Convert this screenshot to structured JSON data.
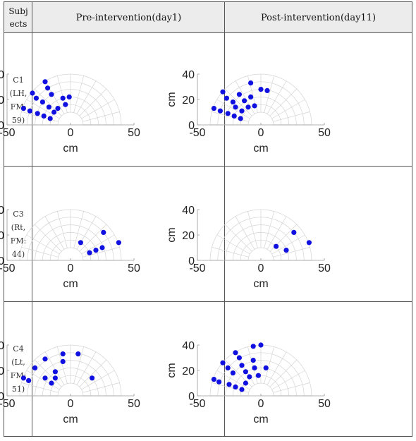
{
  "table": {
    "header": {
      "subject": "Subj ects",
      "pre": "Pre-intervention(day1)",
      "post": "Post-intervention(day11)"
    },
    "rows": [
      {
        "label": [
          "C1",
          "(LH,",
          "FM:",
          "59)"
        ]
      },
      {
        "label": [
          "C3",
          "(Rt,",
          "FM:",
          "44)"
        ]
      },
      {
        "label": [
          "C4",
          "(Lt,",
          "FM:",
          "51)"
        ]
      }
    ]
  },
  "chart_data": [
    {
      "type": "scatter",
      "subject": "C1",
      "panel": "Pre-intervention(day1)",
      "xlabel": "cm",
      "ylabel": "cm",
      "xlim": [
        -50,
        50
      ],
      "ylim": [
        0,
        40
      ],
      "xticks": [
        -50,
        0,
        50
      ],
      "yticks": [
        0,
        20,
        40
      ],
      "marker_color": "#1010e0",
      "points": [
        [
          -37,
          13
        ],
        [
          -32,
          11
        ],
        [
          -30,
          25
        ],
        [
          -27,
          21
        ],
        [
          -26,
          9
        ],
        [
          -22,
          18
        ],
        [
          -21,
          7
        ],
        [
          -20,
          34
        ],
        [
          -18,
          29
        ],
        [
          -17,
          14
        ],
        [
          -16,
          5
        ],
        [
          -15,
          24
        ],
        [
          -13,
          10
        ],
        [
          -10,
          13
        ],
        [
          -6,
          21
        ],
        [
          -4,
          16
        ],
        [
          -1,
          22
        ]
      ]
    },
    {
      "type": "scatter",
      "subject": "C1",
      "panel": "Post-intervention(day11)",
      "xlabel": "cm",
      "ylabel": "cm",
      "xlim": [
        -50,
        50
      ],
      "ylim": [
        0,
        40
      ],
      "xticks": [
        -50,
        0,
        50
      ],
      "yticks": [
        0,
        20,
        40
      ],
      "marker_color": "#1010e0",
      "points": [
        [
          -37,
          13
        ],
        [
          -32,
          11
        ],
        [
          -30,
          26
        ],
        [
          -27,
          21
        ],
        [
          -26,
          9
        ],
        [
          -22,
          18
        ],
        [
          -21,
          7
        ],
        [
          -20,
          14
        ],
        [
          -17,
          24
        ],
        [
          -16,
          5
        ],
        [
          -15,
          11
        ],
        [
          -13,
          19
        ],
        [
          -10,
          14
        ],
        [
          -8,
          33
        ],
        [
          -8,
          22
        ],
        [
          -5,
          15
        ],
        [
          0,
          28
        ],
        [
          5,
          27
        ]
      ]
    },
    {
      "type": "scatter",
      "subject": "C3",
      "panel": "Pre-intervention(day1)",
      "xlabel": "cm",
      "ylabel": "cm",
      "xlim": [
        -50,
        50
      ],
      "ylim": [
        0,
        40
      ],
      "xticks": [
        -50,
        0,
        50
      ],
      "yticks": [
        0,
        20,
        40
      ],
      "marker_color": "#1010e0",
      "points": [
        [
          8,
          14
        ],
        [
          15,
          6
        ],
        [
          20,
          8
        ],
        [
          25,
          10
        ],
        [
          26,
          22
        ],
        [
          38,
          14
        ]
      ]
    },
    {
      "type": "scatter",
      "subject": "C3",
      "panel": "Post-intervention(day11)",
      "xlabel": "cm",
      "ylabel": "cm",
      "xlim": [
        -50,
        50
      ],
      "ylim": [
        0,
        40
      ],
      "xticks": [
        -50,
        0,
        50
      ],
      "yticks": [
        0,
        20,
        40
      ],
      "marker_color": "#1010e0",
      "points": [
        [
          12,
          11
        ],
        [
          20,
          8
        ],
        [
          26,
          22
        ],
        [
          38,
          14
        ]
      ]
    },
    {
      "type": "scatter",
      "subject": "C4",
      "panel": "Pre-intervention(day1)",
      "xlabel": "cm",
      "ylabel": "cm",
      "xlim": [
        -50,
        50
      ],
      "ylim": [
        0,
        40
      ],
      "xticks": [
        -50,
        0,
        50
      ],
      "yticks": [
        0,
        20,
        40
      ],
      "marker_color": "#1010e0",
      "points": [
        [
          -37,
          14
        ],
        [
          -33,
          12
        ],
        [
          -28,
          22
        ],
        [
          -20,
          29
        ],
        [
          -20,
          14
        ],
        [
          -15,
          10
        ],
        [
          -12,
          19
        ],
        [
          -12,
          14
        ],
        [
          -6,
          33
        ],
        [
          -6,
          27
        ],
        [
          6,
          33
        ],
        [
          17,
          14
        ]
      ]
    },
    {
      "type": "scatter",
      "subject": "C4",
      "panel": "Post-intervention(day11)",
      "xlabel": "cm",
      "ylabel": "cm",
      "xlim": [
        -50,
        50
      ],
      "ylim": [
        0,
        40
      ],
      "xticks": [
        -50,
        0,
        50
      ],
      "yticks": [
        0,
        20,
        40
      ],
      "marker_color": "#1010e0",
      "points": [
        [
          -37,
          13
        ],
        [
          -33,
          11
        ],
        [
          -30,
          26
        ],
        [
          -26,
          22
        ],
        [
          -25,
          9
        ],
        [
          -22,
          18
        ],
        [
          -20,
          34
        ],
        [
          -20,
          7
        ],
        [
          -17,
          30
        ],
        [
          -15,
          24
        ],
        [
          -15,
          5
        ],
        [
          -12,
          10
        ],
        [
          -12,
          19
        ],
        [
          -9,
          15
        ],
        [
          -6,
          39
        ],
        [
          -6,
          28
        ],
        [
          -5,
          22
        ],
        [
          0,
          40
        ],
        [
          4,
          22
        ],
        [
          -2,
          16
        ]
      ]
    }
  ]
}
